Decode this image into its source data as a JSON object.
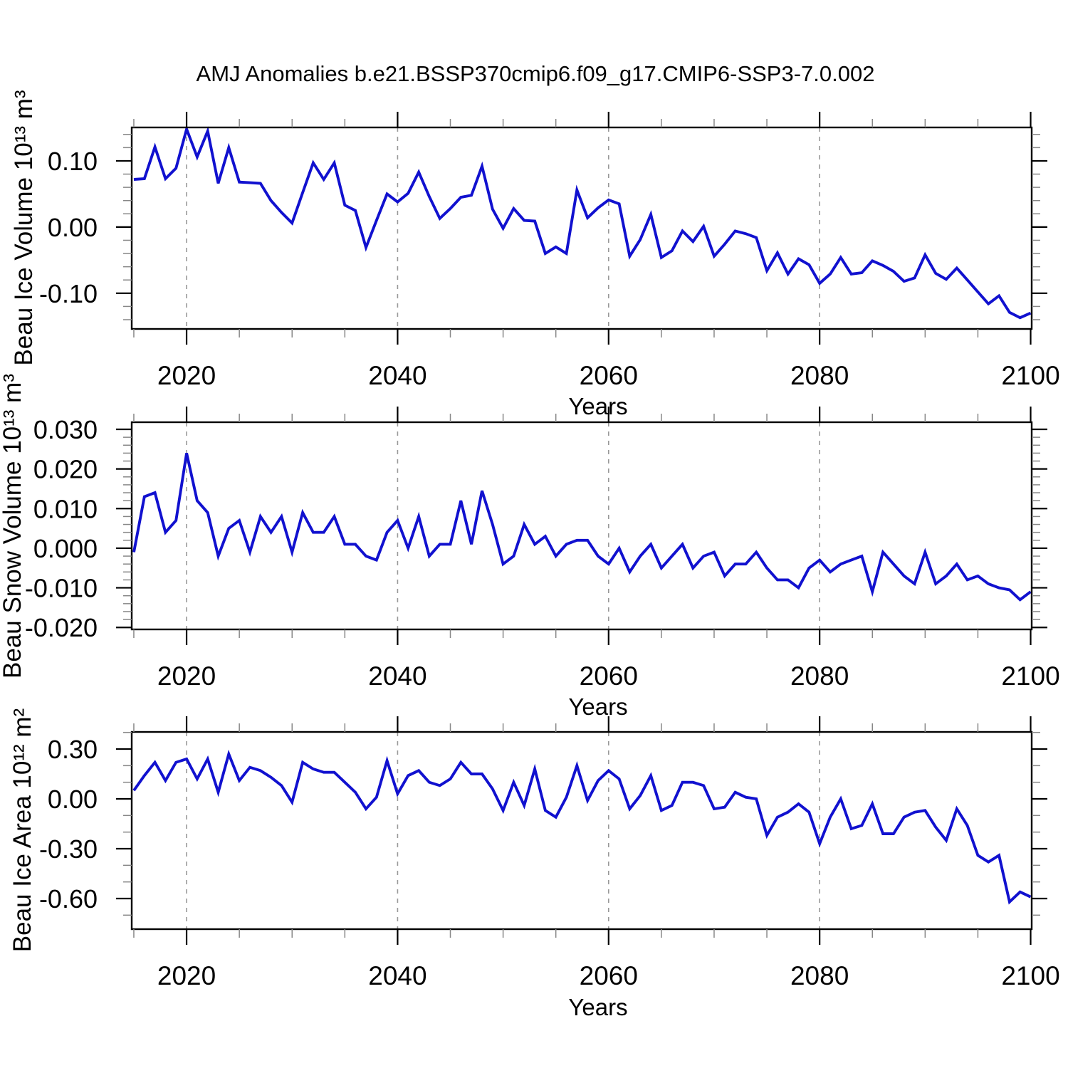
{
  "chart_data": {
    "type": "line",
    "suptitle": "AMJ Anomalies b.e21.BSSP370cmip6.f09_g17.CMIP6-SSP3-7.0.002",
    "xlabel": "Years",
    "line_color": "#1111cf",
    "grid_color": "#999999",
    "axis_color": "#000000",
    "minor_tick_color": "#878787",
    "legend": "none",
    "grid_years": [
      2020,
      2040,
      2060,
      2080
    ],
    "xlim": [
      2014.8,
      2100.1
    ],
    "x_ticks_major": [
      2020,
      2040,
      2060,
      2080,
      2100
    ],
    "x_tick_labels": [
      "2020",
      "2040",
      "2060",
      "2080",
      "2100"
    ],
    "x_minor_step": 5,
    "x": [
      2015,
      2016,
      2017,
      2018,
      2019,
      2020,
      2021,
      2022,
      2023,
      2024,
      2025,
      2026,
      2027,
      2028,
      2029,
      2030,
      2031,
      2032,
      2033,
      2034,
      2035,
      2036,
      2037,
      2038,
      2039,
      2040,
      2041,
      2042,
      2043,
      2044,
      2045,
      2046,
      2047,
      2048,
      2049,
      2050,
      2051,
      2052,
      2053,
      2054,
      2055,
      2056,
      2057,
      2058,
      2059,
      2060,
      2061,
      2062,
      2063,
      2064,
      2065,
      2066,
      2067,
      2068,
      2069,
      2070,
      2071,
      2072,
      2073,
      2074,
      2075,
      2076,
      2077,
      2078,
      2079,
      2080,
      2081,
      2082,
      2083,
      2084,
      2085,
      2086,
      2087,
      2088,
      2089,
      2090,
      2091,
      2092,
      2093,
      2094,
      2095,
      2096,
      2097,
      2098,
      2099,
      2100
    ],
    "panels": [
      {
        "id": "ice-volume",
        "ylabel": "Beau Ice Volume 10¹³ m³",
        "ylim": [
          -0.154,
          0.1505
        ],
        "y_ticks_major": [
          0.1,
          0.0,
          -0.1
        ],
        "y_tick_labels": [
          "0.10",
          "0.00",
          "-0.10"
        ],
        "y_major_step": 0.1,
        "y_minor_step": 0.02,
        "values": [
          0.072,
          0.073,
          0.121,
          0.073,
          0.089,
          0.148,
          0.106,
          0.145,
          0.066,
          0.12,
          0.068,
          0.067,
          0.066,
          0.04,
          0.022,
          0.006,
          0.052,
          0.097,
          0.072,
          0.097,
          0.033,
          0.025,
          -0.031,
          0.01,
          0.05,
          0.038,
          0.051,
          0.083,
          0.046,
          0.013,
          0.028,
          0.045,
          0.048,
          0.092,
          0.027,
          -0.002,
          0.028,
          0.01,
          0.009,
          -0.04,
          -0.03,
          -0.04,
          0.056,
          0.014,
          0.029,
          0.041,
          0.035,
          -0.044,
          -0.019,
          0.019,
          -0.046,
          -0.036,
          -0.006,
          -0.022,
          0.001,
          -0.044,
          -0.026,
          -0.006,
          -0.01,
          -0.016,
          -0.066,
          -0.039,
          -0.071,
          -0.048,
          -0.057,
          -0.085,
          -0.071,
          -0.046,
          -0.071,
          -0.069,
          -0.051,
          -0.058,
          -0.067,
          -0.082,
          -0.077,
          -0.042,
          -0.07,
          -0.079,
          -0.062,
          -0.08,
          -0.098,
          -0.116,
          -0.104,
          -0.129,
          -0.137,
          -0.13
        ]
      },
      {
        "id": "snow-volume",
        "ylabel": "Beau Snow Volume 10¹³ m³",
        "ylim": [
          -0.0205,
          0.0318
        ],
        "y_ticks_major": [
          0.03,
          0.02,
          0.01,
          0.0,
          -0.01,
          -0.02
        ],
        "y_tick_labels": [
          "0.030",
          "0.020",
          "0.010",
          "0.000",
          "-0.010",
          "-0.020"
        ],
        "y_major_step": 0.01,
        "y_minor_step": 0.002,
        "values": [
          -0.001,
          0.013,
          0.014,
          0.004,
          0.007,
          0.024,
          0.012,
          0.009,
          -0.002,
          0.005,
          0.007,
          -0.001,
          0.008,
          0.004,
          0.008,
          -0.001,
          0.009,
          0.004,
          0.004,
          0.008,
          0.001,
          0.001,
          -0.002,
          -0.003,
          0.004,
          0.007,
          0.0,
          0.008,
          -0.002,
          0.001,
          0.001,
          0.012,
          0.001,
          0.0145,
          0.006,
          -0.004,
          -0.002,
          0.006,
          0.001,
          0.003,
          -0.002,
          0.001,
          0.002,
          0.002,
          -0.002,
          -0.004,
          0.0,
          -0.006,
          -0.002,
          0.001,
          -0.005,
          -0.002,
          0.001,
          -0.005,
          -0.002,
          -0.001,
          -0.007,
          -0.004,
          -0.004,
          -0.001,
          -0.005,
          -0.008,
          -0.008,
          -0.01,
          -0.005,
          -0.003,
          -0.006,
          -0.004,
          -0.003,
          -0.002,
          -0.011,
          -0.001,
          -0.004,
          -0.007,
          -0.009,
          -0.001,
          -0.009,
          -0.007,
          -0.004,
          -0.008,
          -0.007,
          -0.009,
          -0.01,
          -0.0105,
          -0.013,
          -0.011
        ]
      },
      {
        "id": "ice-area",
        "ylabel": "Beau Ice Area 10¹² m²",
        "ylim": [
          -0.7843,
          0.4029
        ],
        "y_ticks_major": [
          0.3,
          0.0,
          -0.3,
          -0.6
        ],
        "y_tick_labels": [
          "0.30",
          "0.00",
          "-0.30",
          "-0.60"
        ],
        "y_major_step": 0.3,
        "y_minor_step": 0.1,
        "values": [
          0.05,
          0.14,
          0.22,
          0.11,
          0.22,
          0.24,
          0.12,
          0.24,
          0.04,
          0.27,
          0.11,
          0.19,
          0.17,
          0.13,
          0.08,
          -0.02,
          0.22,
          0.18,
          0.16,
          0.16,
          0.1,
          0.04,
          -0.06,
          0.01,
          0.23,
          0.03,
          0.14,
          0.17,
          0.1,
          0.08,
          0.12,
          0.22,
          0.15,
          0.15,
          0.06,
          -0.07,
          0.1,
          -0.04,
          0.18,
          -0.07,
          -0.11,
          0.01,
          0.2,
          -0.01,
          0.11,
          0.17,
          0.12,
          -0.06,
          0.02,
          0.14,
          -0.07,
          -0.04,
          0.1,
          0.1,
          0.08,
          -0.06,
          -0.05,
          0.04,
          0.01,
          0.0,
          -0.22,
          -0.11,
          -0.08,
          -0.03,
          -0.08,
          -0.27,
          -0.11,
          0.0,
          -0.18,
          -0.16,
          -0.03,
          -0.21,
          -0.21,
          -0.11,
          -0.08,
          -0.07,
          -0.17,
          -0.25,
          -0.06,
          -0.16,
          -0.34,
          -0.38,
          -0.34,
          -0.62,
          -0.56,
          -0.59
        ]
      }
    ]
  }
}
